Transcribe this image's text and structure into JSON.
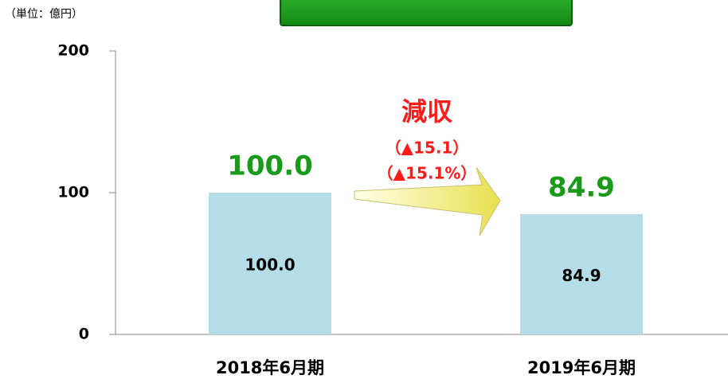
{
  "chart_data": {
    "type": "bar",
    "unit_label": "（単位：億円）",
    "categories": [
      "2018年6月期",
      "2019年6月期"
    ],
    "values": [
      100.0,
      84.9
    ],
    "value_labels": [
      "100.0",
      "84.9"
    ],
    "color": "#b4dde8",
    "label_color": "#1a9a1a",
    "ylim": [
      0,
      200
    ],
    "yticks": [
      0,
      100,
      200
    ],
    "annotations": [
      "減収",
      "（▲15.1）",
      "（▲15.1%）"
    ]
  }
}
